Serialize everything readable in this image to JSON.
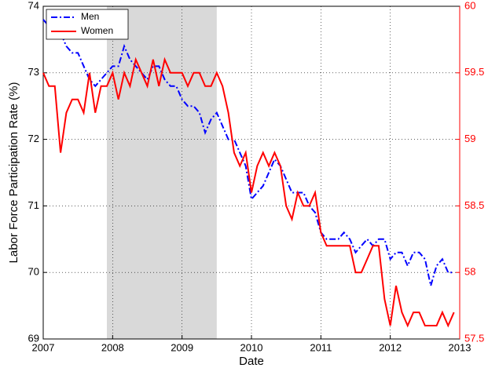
{
  "chart_data": {
    "type": "line",
    "xlabel": "Date",
    "ylabel": "Labor Force Participation Rate (%)",
    "xlim": [
      2007,
      2013
    ],
    "xticks": [
      2007,
      2008,
      2009,
      2010,
      2011,
      2012,
      2013
    ],
    "ylim": [
      69,
      74
    ],
    "yticks": [
      69,
      70,
      71,
      72,
      73,
      74
    ],
    "y2lim": [
      57.5,
      60
    ],
    "y2ticks": [
      57.5,
      58,
      58.5,
      59,
      59.5,
      60
    ],
    "grid": true,
    "legend": "upper left",
    "shade": [
      2007.917,
      2009.5
    ],
    "shade_color": "#d9d9d9",
    "x": [
      2007,
      2007.083,
      2007.167,
      2007.25,
      2007.333,
      2007.417,
      2007.5,
      2007.583,
      2007.667,
      2007.75,
      2007.833,
      2007.917,
      2008,
      2008.083,
      2008.167,
      2008.25,
      2008.333,
      2008.417,
      2008.5,
      2008.583,
      2008.667,
      2008.75,
      2008.833,
      2008.917,
      2009,
      2009.083,
      2009.167,
      2009.25,
      2009.333,
      2009.417,
      2009.5,
      2009.583,
      2009.667,
      2009.75,
      2009.833,
      2009.917,
      2010,
      2010.083,
      2010.167,
      2010.25,
      2010.333,
      2010.417,
      2010.5,
      2010.583,
      2010.667,
      2010.75,
      2010.833,
      2010.917,
      2011,
      2011.083,
      2011.167,
      2011.25,
      2011.333,
      2011.417,
      2011.5,
      2011.583,
      2011.667,
      2011.75,
      2011.833,
      2011.917,
      2012,
      2012.083,
      2012.167,
      2012.25,
      2012.333,
      2012.417,
      2012.5,
      2012.583,
      2012.667,
      2012.75,
      2012.833,
      2012.917
    ],
    "series": [
      {
        "name": "Men",
        "color": "#0000ff",
        "dash": "dashdot",
        "values": [
          73.8,
          73.7,
          73.7,
          73.6,
          73.4,
          73.3,
          73.3,
          73.1,
          72.9,
          72.8,
          72.9,
          73.0,
          73.1,
          73.1,
          73.4,
          73.2,
          73.1,
          73.0,
          72.9,
          73.1,
          73.1,
          72.9,
          72.8,
          72.8,
          72.6,
          72.5,
          72.5,
          72.4,
          72.1,
          72.3,
          72.4,
          72.2,
          72.0,
          72.0,
          71.8,
          71.6,
          71.1,
          71.2,
          71.3,
          71.5,
          71.7,
          71.6,
          71.4,
          71.2,
          71.2,
          71.2,
          71.0,
          70.9,
          70.6,
          70.5,
          70.5,
          70.5,
          70.6,
          70.5,
          70.3,
          70.4,
          70.5,
          70.4,
          70.5,
          70.5,
          70.2,
          70.3,
          70.3,
          70.1,
          70.3,
          70.3,
          70.2,
          69.8,
          70.1,
          70.2,
          70.0,
          70.0
        ]
      },
      {
        "name": "Women",
        "color": "#ff0000",
        "axis": "y2",
        "values": [
          59.5,
          59.4,
          59.4,
          58.9,
          59.2,
          59.3,
          59.3,
          59.2,
          59.5,
          59.2,
          59.4,
          59.4,
          59.5,
          59.3,
          59.5,
          59.4,
          59.6,
          59.5,
          59.4,
          59.6,
          59.4,
          59.6,
          59.5,
          59.5,
          59.5,
          59.4,
          59.5,
          59.5,
          59.4,
          59.4,
          59.5,
          59.4,
          59.2,
          58.9,
          58.8,
          58.9,
          58.6,
          58.8,
          58.9,
          58.8,
          58.9,
          58.8,
          58.5,
          58.4,
          58.6,
          58.5,
          58.5,
          58.6,
          58.3,
          58.2,
          58.2,
          58.2,
          58.2,
          58.2,
          58.0,
          58.0,
          58.1,
          58.2,
          58.2,
          57.8,
          57.6,
          57.9,
          57.7,
          57.6,
          57.7,
          57.7,
          57.6,
          57.6,
          57.6,
          57.7,
          57.6,
          57.7
        ]
      }
    ]
  }
}
